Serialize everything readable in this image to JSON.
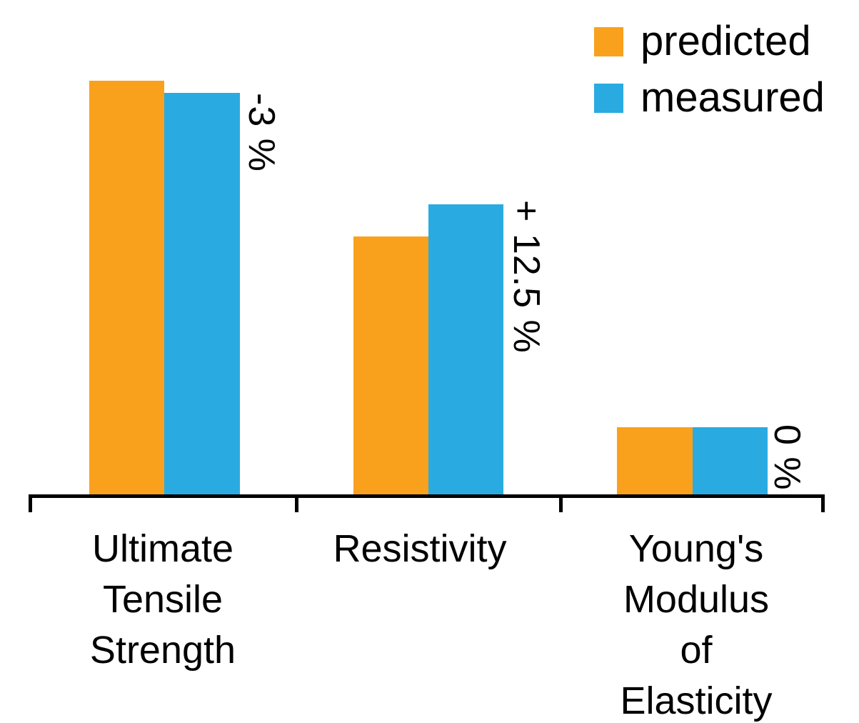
{
  "chart_data": {
    "type": "bar",
    "title": "",
    "categories": [
      "Ultimate\nTensile\nStrength",
      "Resistivity",
      "Young's\nModulus\nof\nElasticity"
    ],
    "series": [
      {
        "name": "predicted",
        "color": "#F9A11D",
        "values": [
          100,
          62.3,
          16.2
        ]
      },
      {
        "name": "measured",
        "color": "#29ABE2",
        "values": [
          97.1,
          70.1,
          16.2
        ]
      }
    ],
    "value_scale": "relative, tallest bar (predicted Ultimate Tensile Strength) = 100",
    "annotations": [
      "-3 %",
      "+ 12.5 %",
      "0 %"
    ],
    "annotation_meaning": "measured difference vs predicted, rotated 90° clockwise beside each measured bar",
    "xlabel": "",
    "ylabel": "",
    "ylim": [
      0,
      104
    ],
    "grid": false,
    "y_axis_visible": false,
    "legend_position": "top-right",
    "axis_color": "#000000",
    "text_color": "#000000"
  }
}
